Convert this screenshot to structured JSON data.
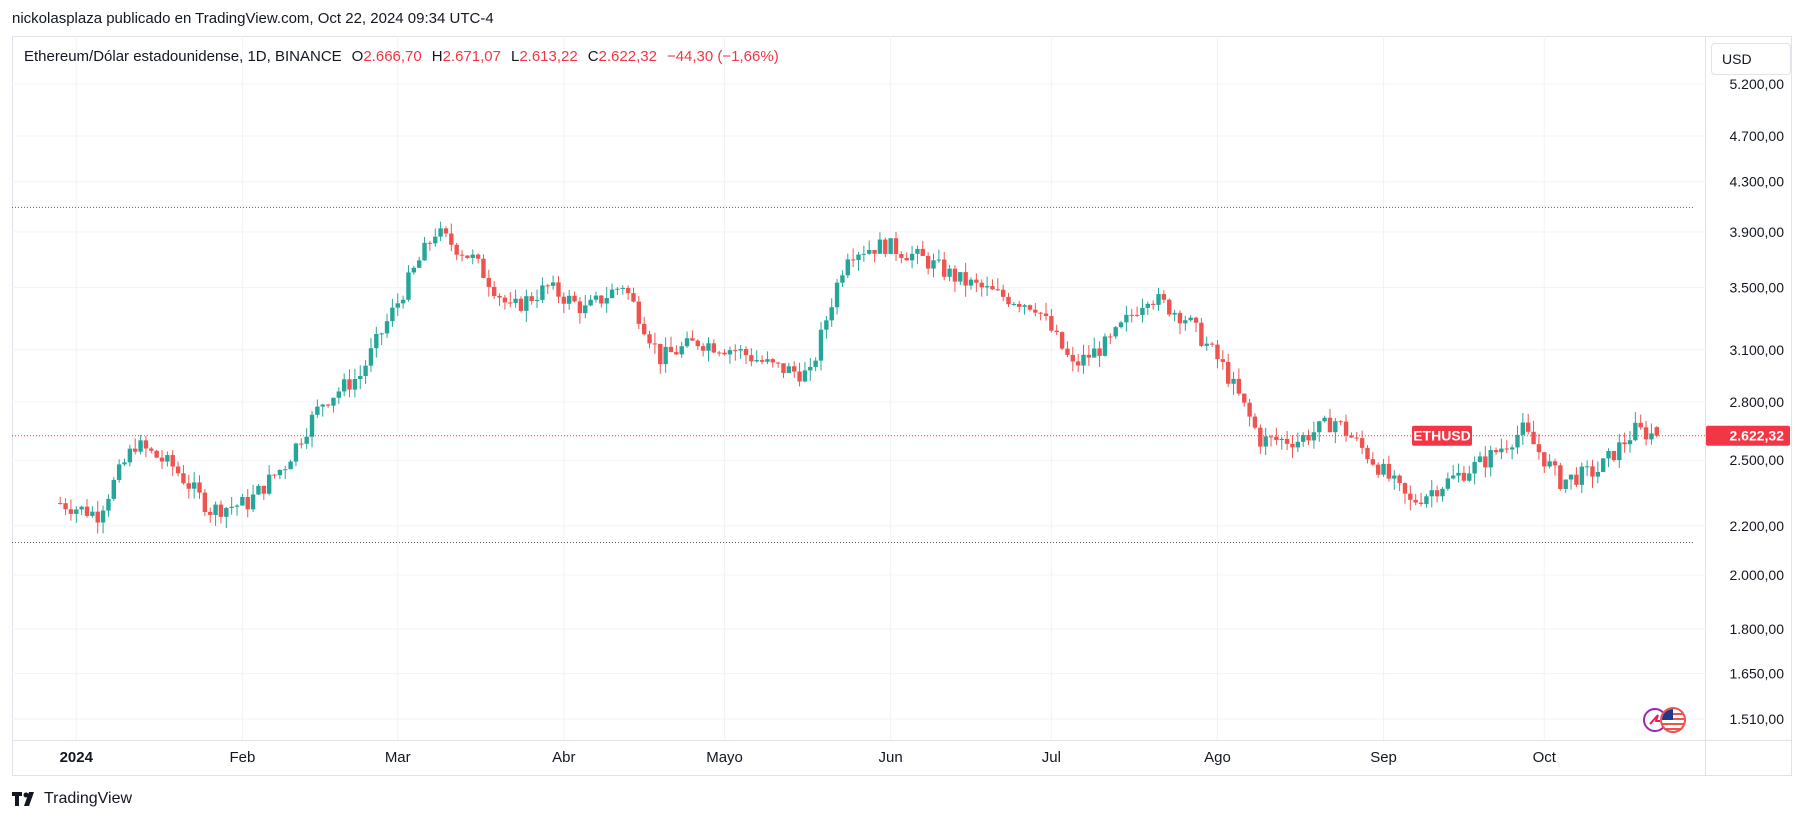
{
  "header": {
    "publisher_line": "nickolasplaza publicado en TradingView.com, Oct 22, 2024 09:34 UTC-4"
  },
  "legend": {
    "symbol_line": "Ethereum/Dólar estadounidense, 1D, BINANCE",
    "open_label": "O",
    "open_value": "2.666,70",
    "high_label": "H",
    "high_value": "2.671,07",
    "low_label": "L",
    "low_value": "2.613,22",
    "close_label": "C",
    "close_value": "2.622,32",
    "change": "−44,30 (−1,66%)"
  },
  "currency_selector": {
    "label": "USD"
  },
  "footer": {
    "brand": "TradingView"
  },
  "colors": {
    "up": "#26a69a",
    "down": "#ef5350",
    "price_label_bg": "#f23645",
    "grid": "#f0f3fa"
  },
  "chart_data": {
    "type": "candlestick",
    "symbol": "ETHUSD",
    "interval": "1D",
    "exchange": "BINANCE",
    "scale": "log",
    "ylim": [
      1450,
      5450
    ],
    "y_tick_labels": [
      "5.200,00",
      "4.700,00",
      "4.300,00",
      "3.900,00",
      "3.500,00",
      "3.100,00",
      "2.800,00",
      "2.500,00",
      "2.200,00",
      "2.000,00",
      "1.800,00",
      "1.650,00",
      "1.510,00"
    ],
    "x_tick_labels": [
      "2024",
      "Feb",
      "Mar",
      "Abr",
      "Mayo",
      "Jun",
      "Jul",
      "Ago",
      "Sep",
      "Oct"
    ],
    "last_price": {
      "value": 2622.32,
      "label": "2.622,32",
      "tag": "ETHUSD"
    },
    "reference_lines": [
      4090,
      2130
    ],
    "weekly_closes": [
      {
        "date": "2023-12-29",
        "close": 2300
      },
      {
        "date": "2024-01-05",
        "close": 2250
      },
      {
        "date": "2024-01-12",
        "close": 2580
      },
      {
        "date": "2024-01-19",
        "close": 2470
      },
      {
        "date": "2024-01-26",
        "close": 2270
      },
      {
        "date": "2024-02-02",
        "close": 2300
      },
      {
        "date": "2024-02-09",
        "close": 2480
      },
      {
        "date": "2024-02-16",
        "close": 2800
      },
      {
        "date": "2024-02-23",
        "close": 2950
      },
      {
        "date": "2024-03-01",
        "close": 3400
      },
      {
        "date": "2024-03-08",
        "close": 3900
      },
      {
        "date": "2024-03-15",
        "close": 3700
      },
      {
        "date": "2024-03-22",
        "close": 3350
      },
      {
        "date": "2024-03-29",
        "close": 3500
      },
      {
        "date": "2024-04-05",
        "close": 3350
      },
      {
        "date": "2024-04-12",
        "close": 3520
      },
      {
        "date": "2024-04-19",
        "close": 3050
      },
      {
        "date": "2024-04-26",
        "close": 3150
      },
      {
        "date": "2024-05-03",
        "close": 3100
      },
      {
        "date": "2024-05-10",
        "close": 3000
      },
      {
        "date": "2024-05-17",
        "close": 2950
      },
      {
        "date": "2024-05-24",
        "close": 3750
      },
      {
        "date": "2024-05-31",
        "close": 3800
      },
      {
        "date": "2024-06-07",
        "close": 3700
      },
      {
        "date": "2024-06-14",
        "close": 3550
      },
      {
        "date": "2024-06-21",
        "close": 3450
      },
      {
        "date": "2024-06-28",
        "close": 3380
      },
      {
        "date": "2024-07-05",
        "close": 3000
      },
      {
        "date": "2024-07-12",
        "close": 3150
      },
      {
        "date": "2024-07-19",
        "close": 3450
      },
      {
        "date": "2024-07-26",
        "close": 3300
      },
      {
        "date": "2024-08-02",
        "close": 3000
      },
      {
        "date": "2024-08-09",
        "close": 2600
      },
      {
        "date": "2024-08-16",
        "close": 2600
      },
      {
        "date": "2024-08-23",
        "close": 2700
      },
      {
        "date": "2024-08-30",
        "close": 2500
      },
      {
        "date": "2024-09-06",
        "close": 2300
      },
      {
        "date": "2024-09-13",
        "close": 2400
      },
      {
        "date": "2024-09-20",
        "close": 2500
      },
      {
        "date": "2024-09-27",
        "close": 2650
      },
      {
        "date": "2024-10-04",
        "close": 2400
      },
      {
        "date": "2024-10-11",
        "close": 2450
      },
      {
        "date": "2024-10-18",
        "close": 2650
      },
      {
        "date": "2024-10-22",
        "close": 2622.32
      }
    ]
  }
}
